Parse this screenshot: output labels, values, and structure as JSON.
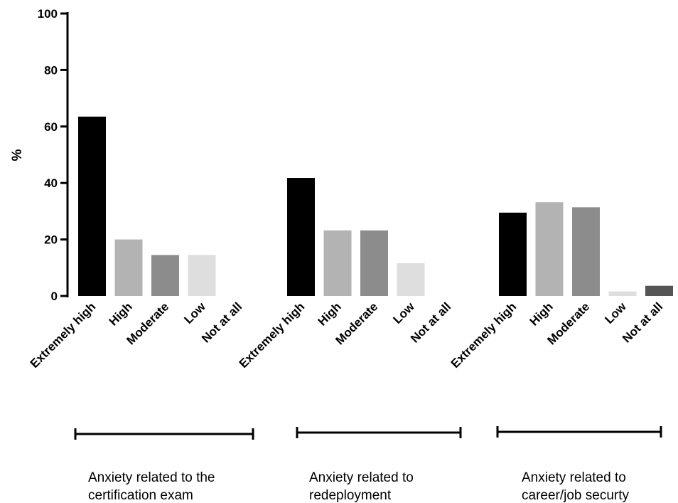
{
  "chart_data": {
    "type": "bar",
    "ylabel": "%",
    "ylim": [
      0,
      100
    ],
    "yticks": [
      0,
      20,
      40,
      60,
      80,
      100
    ],
    "grid": false,
    "groups": [
      {
        "label_line1": "Anxiety related to the",
        "label_line2": "certification exam",
        "categories": [
          "Extremely high",
          "High",
          "Moderate",
          "Low",
          "Not at all"
        ],
        "values": [
          63.5,
          20,
          14.5,
          14.5,
          0
        ],
        "colors": [
          "#000000",
          "#b3b3b3",
          "#8c8c8c",
          "#dedede",
          "#555555"
        ]
      },
      {
        "label_line1": "Anxiety related to",
        "label_line2": "redeployment",
        "categories": [
          "Extremely high",
          "High",
          "Moderate",
          "Low",
          "Not at all"
        ],
        "values": [
          41.8,
          23.2,
          23.2,
          11.6,
          0
        ],
        "colors": [
          "#000000",
          "#b3b3b3",
          "#8c8c8c",
          "#dedede",
          "#555555"
        ]
      },
      {
        "label_line1": "Anxiety related to",
        "label_line2": "career/job securty",
        "categories": [
          "Extremely high",
          "High",
          "Moderate",
          "Low",
          "Not at all"
        ],
        "values": [
          29.5,
          33.2,
          31.4,
          1.6,
          3.6
        ],
        "colors": [
          "#000000",
          "#b3b3b3",
          "#8c8c8c",
          "#dedede",
          "#555555"
        ]
      }
    ]
  }
}
